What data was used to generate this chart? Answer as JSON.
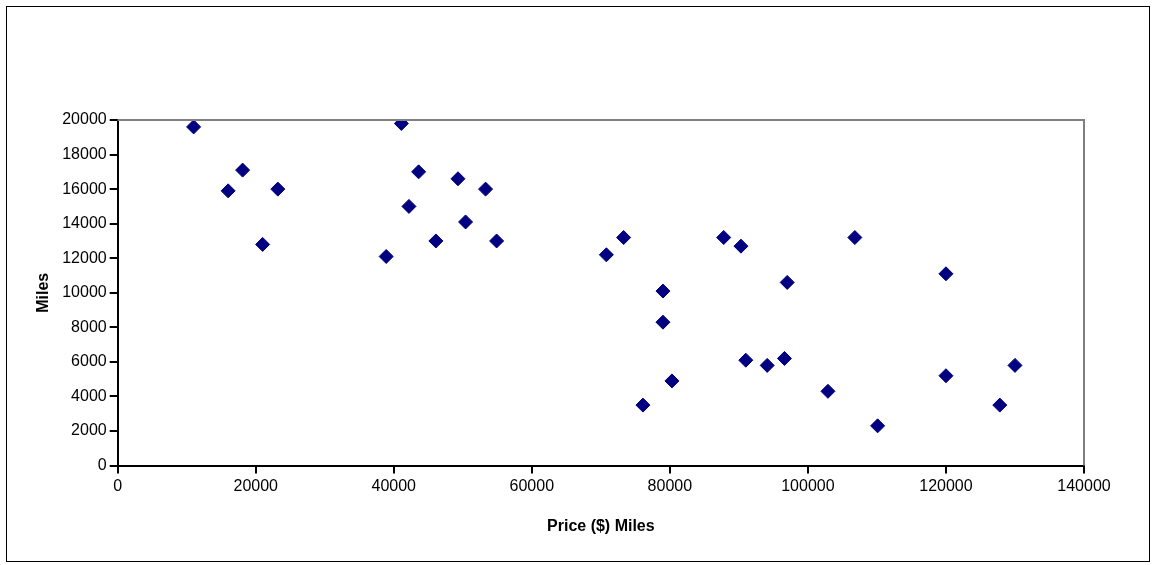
{
  "chart_data": {
    "type": "scatter",
    "xlabel": "Price ($) Miles",
    "ylabel": "Miles",
    "marker": "diamond",
    "grid": false,
    "legend": false,
    "xlim": [
      0,
      140000
    ],
    "xticks": [
      0,
      20000,
      40000,
      60000,
      80000,
      100000,
      120000,
      140000
    ],
    "ylim": [
      0,
      20000
    ],
    "yticks": [
      0,
      2000,
      4000,
      6000,
      8000,
      10000,
      12000,
      14000,
      16000,
      18000,
      20000
    ],
    "series": [
      {
        "color": "#000080",
        "x": [
          11000,
          18100,
          16000,
          23200,
          21000,
          41100,
          43600,
          42200,
          49300,
          53300,
          50400,
          46100,
          54900,
          38900,
          70800,
          73300,
          79000,
          79000,
          76100,
          80300,
          87800,
          90300,
          97000,
          91000,
          94100,
          96600,
          106800,
          102900,
          110100,
          120000,
          120000,
          127800,
          130000
        ],
        "values": [
          19600,
          17100,
          15900,
          16000,
          12800,
          19800,
          17000,
          15000,
          16600,
          16000,
          14100,
          13000,
          13000,
          12100,
          12200,
          13200,
          10100,
          8300,
          3500,
          4900,
          13200,
          12700,
          10600,
          6100,
          5800,
          6200,
          13200,
          4300,
          2300,
          11100,
          5200,
          3500,
          5800
        ]
      }
    ]
  }
}
